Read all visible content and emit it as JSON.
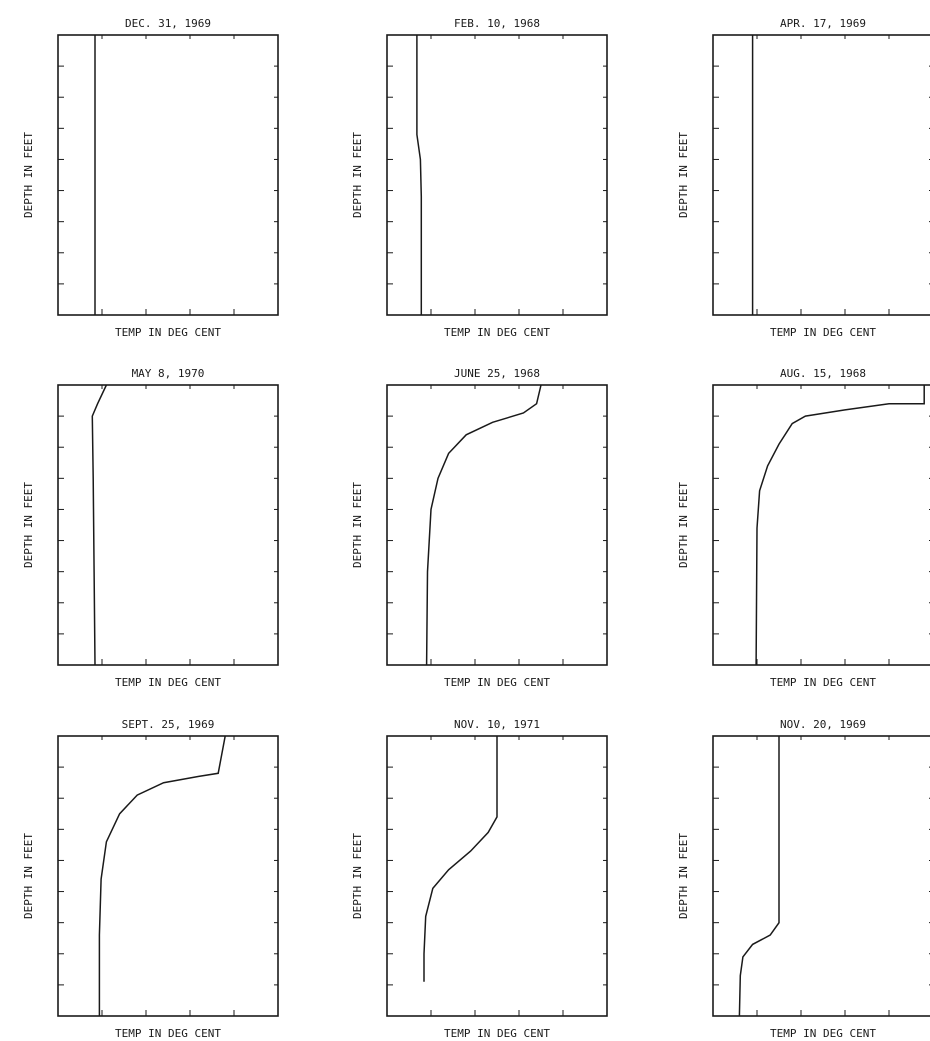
{
  "chart_data": [
    {
      "type": "line",
      "title": "DEC. 31, 1969",
      "xlabel": "TEMP IN DEG CENT",
      "ylabel": "DEPTH IN FEET",
      "xlim": [
        0,
        25
      ],
      "ylim": [
        0,
        450
      ],
      "x_ticks": [
        0,
        5,
        10,
        15,
        20,
        25
      ],
      "y_ticks": [
        0,
        50,
        100,
        150,
        200,
        250,
        300,
        350,
        400,
        450
      ],
      "series": [
        {
          "values": [
            [
              4.2,
              0
            ],
            [
              4.2,
              450
            ]
          ]
        }
      ]
    },
    {
      "type": "line",
      "title": "FEB. 10, 1968",
      "xlabel": "TEMP IN DEG CENT",
      "ylabel": "DEPTH IN FEET",
      "xlim": [
        0,
        25
      ],
      "ylim": [
        0,
        450
      ],
      "x_ticks": [
        0,
        5,
        10,
        15,
        20,
        25
      ],
      "y_ticks": [
        0,
        50,
        100,
        150,
        200,
        250,
        300,
        350,
        400,
        450
      ],
      "series": [
        {
          "values": [
            [
              3.4,
              0
            ],
            [
              3.4,
              160
            ],
            [
              3.8,
              200
            ],
            [
              3.9,
              260
            ],
            [
              3.9,
              450
            ]
          ]
        }
      ]
    },
    {
      "type": "line",
      "title": "APR. 17, 1969",
      "xlabel": "TEMP IN DEG CENT",
      "ylabel": "DEPTH IN FEET",
      "xlim": [
        0,
        25
      ],
      "ylim": [
        0,
        450
      ],
      "x_ticks": [
        0,
        5,
        10,
        15,
        20,
        25
      ],
      "y_ticks": [
        0,
        50,
        100,
        150,
        200,
        250,
        300,
        350,
        400,
        450
      ],
      "series": [
        {
          "values": [
            [
              4.5,
              0
            ],
            [
              4.5,
              450
            ]
          ]
        }
      ]
    },
    {
      "type": "line",
      "title": "MAY 8, 1970",
      "xlabel": "TEMP IN DEG CENT",
      "ylabel": "DEPTH IN FEET",
      "xlim": [
        0,
        25
      ],
      "ylim": [
        0,
        450
      ],
      "x_ticks": [
        0,
        5,
        10,
        15,
        20,
        25
      ],
      "y_ticks": [
        0,
        50,
        100,
        150,
        200,
        250,
        300,
        350,
        400,
        450
      ],
      "series": [
        {
          "values": [
            [
              5.5,
              0
            ],
            [
              4.5,
              30
            ],
            [
              3.9,
              50
            ],
            [
              4.0,
              150
            ],
            [
              4.1,
              300
            ],
            [
              4.2,
              450
            ]
          ]
        }
      ]
    },
    {
      "type": "line",
      "title": "JUNE 25, 1968",
      "xlabel": "TEMP IN DEG CENT",
      "ylabel": "DEPTH IN FEET",
      "xlim": [
        0,
        25
      ],
      "ylim": [
        0,
        450
      ],
      "x_ticks": [
        0,
        5,
        10,
        15,
        20,
        25
      ],
      "y_ticks": [
        0,
        50,
        100,
        150,
        200,
        250,
        300,
        350,
        400,
        450
      ],
      "series": [
        {
          "values": [
            [
              17.5,
              0
            ],
            [
              17.0,
              30
            ],
            [
              15.5,
              45
            ],
            [
              12.0,
              60
            ],
            [
              9.0,
              80
            ],
            [
              7.0,
              110
            ],
            [
              5.8,
              150
            ],
            [
              5.0,
              200
            ],
            [
              4.6,
              300
            ],
            [
              4.5,
              450
            ]
          ]
        }
      ]
    },
    {
      "type": "line",
      "title": "AUG. 15, 1968",
      "xlabel": "TEMP IN DEG CENT",
      "ylabel": "DEPTH IN FEET",
      "xlim": [
        0,
        25
      ],
      "ylim": [
        0,
        450
      ],
      "x_ticks": [
        0,
        5,
        10,
        15,
        20,
        25
      ],
      "y_ticks": [
        0,
        50,
        100,
        150,
        200,
        250,
        300,
        350,
        400,
        450
      ],
      "series": [
        {
          "values": [
            [
              24.0,
              0
            ],
            [
              24.0,
              30
            ],
            [
              20.0,
              30
            ],
            [
              15.0,
              40
            ],
            [
              10.5,
              50
            ],
            [
              9.0,
              62
            ],
            [
              7.5,
              95
            ],
            [
              6.2,
              130
            ],
            [
              5.3,
              170
            ],
            [
              5.0,
              230
            ],
            [
              4.9,
              450
            ]
          ]
        }
      ]
    },
    {
      "type": "line",
      "title": "SEPT. 25, 1969",
      "xlabel": "TEMP IN DEG CENT",
      "ylabel": "DEPTH IN FEET",
      "xlim": [
        0,
        25
      ],
      "ylim": [
        0,
        450
      ],
      "x_ticks": [
        0,
        5,
        10,
        15,
        20,
        25
      ],
      "y_ticks": [
        0,
        50,
        100,
        150,
        200,
        250,
        300,
        350,
        400,
        450
      ],
      "series": [
        {
          "values": [
            [
              19.0,
              0
            ],
            [
              18.2,
              60
            ],
            [
              16.0,
              65
            ],
            [
              12.0,
              75
            ],
            [
              9.0,
              95
            ],
            [
              7.0,
              125
            ],
            [
              5.5,
              170
            ],
            [
              4.9,
              230
            ],
            [
              4.7,
              320
            ],
            [
              4.7,
              450
            ]
          ]
        }
      ]
    },
    {
      "type": "line",
      "title": "NOV. 10, 1971",
      "xlabel": "TEMP IN DEG CENT",
      "ylabel": "DEPTH IN FEET",
      "xlim": [
        0,
        25
      ],
      "ylim": [
        0,
        450
      ],
      "x_ticks": [
        0,
        5,
        10,
        15,
        20,
        25
      ],
      "y_ticks": [
        0,
        50,
        100,
        150,
        200,
        250,
        300,
        350,
        400,
        450
      ],
      "series": [
        {
          "values": [
            [
              12.5,
              0
            ],
            [
              12.5,
              130
            ],
            [
              11.5,
              155
            ],
            [
              9.5,
              185
            ],
            [
              7.0,
              215
            ],
            [
              5.2,
              245
            ],
            [
              4.4,
              290
            ],
            [
              4.2,
              350
            ],
            [
              4.2,
              395
            ]
          ]
        }
      ]
    },
    {
      "type": "line",
      "title": "NOV. 20, 1969",
      "xlabel": "TEMP IN DEG CENT",
      "ylabel": "DEPTH IN FEET",
      "xlim": [
        0,
        25
      ],
      "ylim": [
        0,
        450
      ],
      "x_ticks": [
        0,
        5,
        10,
        15,
        20,
        25
      ],
      "y_ticks": [
        0,
        50,
        100,
        150,
        200,
        250,
        300,
        350,
        400,
        450
      ],
      "series": [
        {
          "values": [
            [
              7.5,
              0
            ],
            [
              7.5,
              300
            ],
            [
              6.5,
              320
            ],
            [
              4.5,
              335
            ],
            [
              3.4,
              355
            ],
            [
              3.1,
              385
            ],
            [
              3.0,
              450
            ]
          ]
        }
      ]
    }
  ]
}
